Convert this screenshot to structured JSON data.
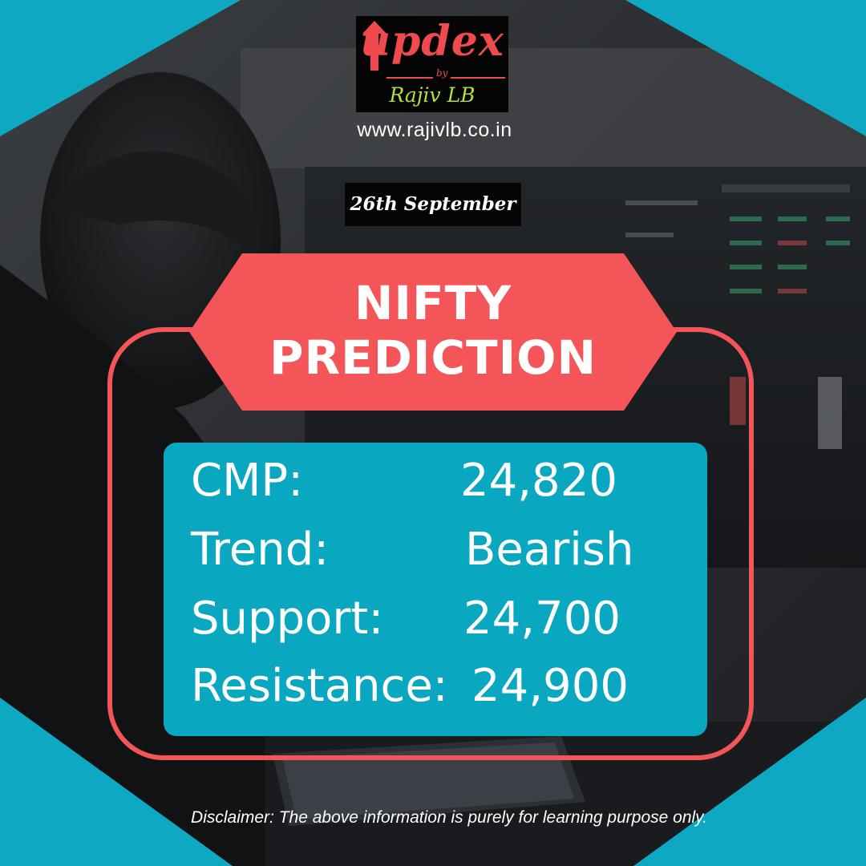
{
  "logo": {
    "word": "updex",
    "by": "by",
    "sub": "Rajiv LB"
  },
  "website": "www.rajivlb.co.in",
  "date": "26th September",
  "banner": {
    "title_line1": "NIFTY",
    "title_line2": "PREDICTION"
  },
  "stats": [
    {
      "label": "CMP:",
      "value": "24,820"
    },
    {
      "label": "Trend:",
      "value": "Bearish"
    },
    {
      "label": "Support:",
      "value": "24,700"
    },
    {
      "label": "Resistance:",
      "value": "24,900"
    }
  ],
  "disclaimer": "Disclaimer: The above information is purely for learning purpose only.",
  "colors": {
    "accent_red": "#f45558",
    "panel_teal": "#0aa7c0",
    "corner_teal": "#0ea8c2",
    "logo_green": "#b4e03a"
  }
}
